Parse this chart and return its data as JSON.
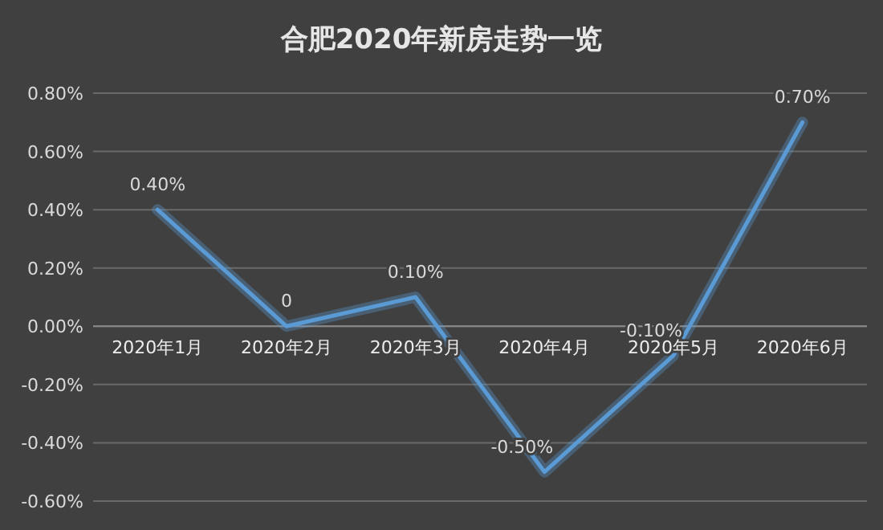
{
  "chart_data": {
    "type": "line",
    "title": "合肥2020年新房走势一览",
    "categories": [
      "2020年1月",
      "2020年2月",
      "2020年3月",
      "2020年4月",
      "2020年5月",
      "2020年6月"
    ],
    "series": [
      {
        "color": "#5b9bd5",
        "values": [
          0.4,
          0,
          0.1,
          -0.5,
          -0.1,
          0.7
        ],
        "value_labels": [
          "0.40%",
          "0",
          "0.10%",
          "-0.50%",
          "-0.10%",
          "0.70%"
        ]
      }
    ],
    "ylim": [
      -0.6,
      0.8
    ],
    "yticks": [
      {
        "value": -0.6,
        "label": "-0.60%"
      },
      {
        "value": -0.4,
        "label": "-0.40%"
      },
      {
        "value": -0.2,
        "label": "-0.20%"
      },
      {
        "value": 0,
        "label": "0.00%"
      },
      {
        "value": 0.2,
        "label": "0.20%"
      },
      {
        "value": 0.4,
        "label": "0.40%"
      },
      {
        "value": 0.6,
        "label": "0.60%"
      },
      {
        "value": 0.8,
        "label": "0.80%"
      }
    ],
    "grid": "y",
    "marker": "none",
    "line_style": "solid"
  }
}
